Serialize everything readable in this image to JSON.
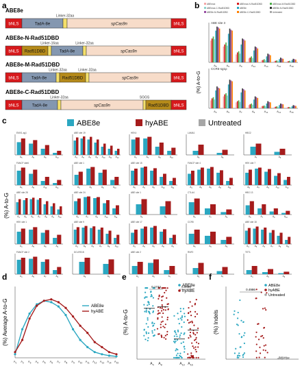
{
  "panels": {
    "a": "a",
    "b": "b",
    "c": "c",
    "d": "d",
    "e": "e",
    "f": "f"
  },
  "colors": {
    "abe8e": "#2ba7c1",
    "hyabe": "#a51c1c",
    "untreated": "#a6a6a6",
    "nls": "#d7191c",
    "tada": "#8497b0",
    "rad51": "#b58a1a",
    "cas9": "#f7dcc9",
    "linker": "#f5e06a"
  },
  "constructs": [
    {
      "name": "ABE8e",
      "segments": [
        {
          "label": "bNLS",
          "kind": "nls",
          "w": 24
        },
        {
          "label": "TadA-8e",
          "kind": "tada",
          "w": 60
        },
        {
          "label": "",
          "kind": "linker",
          "w": 6
        },
        {
          "label": "spCas9n",
          "kind": "cas9",
          "w": 152
        },
        {
          "label": "bNLS",
          "kind": "nls",
          "w": 22
        }
      ],
      "linkers": [
        "Linker-32aa"
      ]
    },
    {
      "name": "ABE8e-N-Rad51DBD",
      "segments": [
        {
          "label": "bNLS",
          "kind": "nls",
          "w": 24
        },
        {
          "label": "Rad51DBD",
          "kind": "rad51",
          "w": 38
        },
        {
          "label": "",
          "kind": "linker",
          "w": 5
        },
        {
          "label": "TadA-8e",
          "kind": "tada",
          "w": 46
        },
        {
          "label": "",
          "kind": "linker",
          "w": 5
        },
        {
          "label": "spCas9n",
          "kind": "cas9",
          "w": 124
        },
        {
          "label": "bNLS",
          "kind": "nls",
          "w": 22
        }
      ],
      "linkers": [
        "Linker-16aa",
        "Linker-32aa"
      ]
    },
    {
      "name": "ABE8e-M-Rad51DBD",
      "segments": [
        {
          "label": "bNLS",
          "kind": "nls",
          "w": 24
        },
        {
          "label": "TadA-8e",
          "kind": "tada",
          "w": 50
        },
        {
          "label": "",
          "kind": "linker",
          "w": 5
        },
        {
          "label": "Rad51DBD",
          "kind": "rad51",
          "w": 38
        },
        {
          "label": "",
          "kind": "linker",
          "w": 5
        },
        {
          "label": "spCas9n",
          "kind": "cas9",
          "w": 120
        },
        {
          "label": "bNLS",
          "kind": "nls",
          "w": 22
        }
      ],
      "linkers": [
        "Linker-32aa",
        "Linker-32aa"
      ]
    },
    {
      "name": "ABE8e-C-Rad51DBD",
      "segments": [
        {
          "label": "bNLS",
          "kind": "nls",
          "w": 24
        },
        {
          "label": "TadA-8e",
          "kind": "tada",
          "w": 52
        },
        {
          "label": "",
          "kind": "linker",
          "w": 5
        },
        {
          "label": "spCas9n",
          "kind": "cas9",
          "w": 120
        },
        {
          "label": "",
          "kind": "linker",
          "w": 4
        },
        {
          "label": "Rad51DBD",
          "kind": "rad51",
          "w": 37
        },
        {
          "label": "bNLS",
          "kind": "nls",
          "w": 22
        }
      ],
      "linkers": [
        "Linker-32aa",
        "SGGS"
      ]
    }
  ],
  "b_legend": [
    "ABEmax",
    "ABEmax-N-Rad51DBD",
    "ABEmax-M-Rad51DBD",
    "ABEmax-C-Rad51DBD",
    "ABE8e",
    "ABE8e-N-Rad51DBD",
    "ABE8e-M-Rad51DBD",
    "ABE8e-C-Rad51DBD",
    "Untreated"
  ],
  "c_legend": [
    "ABE8e",
    "hyABE",
    "Untreated"
  ],
  "ylabels": {
    "b": "(%) A-to-G",
    "c": "(%) A-to-G",
    "d": "(%) Average A-to-G",
    "e": "(%) A-to-G",
    "f": "(%) Indels"
  },
  "chart_data": [
    {
      "panel": "b",
      "type": "bar",
      "title": "ABE site 3",
      "series_names": [
        "ABEmax",
        "ABEmax-N-Rad51DBD",
        "ABEmax-M-Rad51DBD",
        "ABEmax-C-Rad51DBD",
        "ABE8e",
        "ABE8e-N-Rad51DBD",
        "ABE8e-M-Rad51DBD",
        "ABE8e-C-Rad51DBD"
      ],
      "categories": [
        "A5",
        "A6",
        "A9",
        "A12",
        "A14",
        "A16",
        "A18"
      ],
      "values": [
        [
          55,
          60,
          65,
          58,
          80,
          90,
          88,
          85
        ],
        [
          40,
          45,
          50,
          42,
          72,
          85,
          82,
          80
        ],
        [
          20,
          25,
          28,
          22,
          45,
          60,
          58,
          55
        ],
        [
          10,
          12,
          15,
          11,
          30,
          40,
          38,
          35
        ],
        [
          5,
          6,
          8,
          5,
          15,
          22,
          20,
          18
        ],
        [
          3,
          4,
          5,
          3,
          8,
          12,
          10,
          9
        ],
        [
          2,
          3,
          4,
          2,
          6,
          9,
          8,
          7
        ]
      ],
      "ylim": [
        0,
        100
      ]
    },
    {
      "panel": "b",
      "type": "bar",
      "title": "CCR5-sg1p",
      "series_names": [
        "ABEmax",
        "ABEmax-N-Rad51DBD",
        "ABEmax-M-Rad51DBD",
        "ABEmax-C-Rad51DBD",
        "ABE8e",
        "ABE8e-N-Rad51DBD",
        "ABE8e-M-Rad51DBD",
        "ABE8e-C-Rad51DBD"
      ],
      "categories": [
        "A3",
        "A5",
        "A7",
        "A9",
        "A11",
        "A13",
        "A15"
      ],
      "values": [
        [
          20,
          25,
          28,
          22,
          45,
          55,
          52,
          50
        ],
        [
          30,
          35,
          38,
          32,
          60,
          72,
          70,
          68
        ],
        [
          15,
          18,
          20,
          16,
          40,
          50,
          48,
          45
        ],
        [
          8,
          10,
          12,
          9,
          22,
          30,
          28,
          26
        ],
        [
          5,
          6,
          7,
          5,
          12,
          18,
          16,
          15
        ],
        [
          3,
          4,
          5,
          3,
          8,
          12,
          11,
          10
        ],
        [
          2,
          3,
          3,
          2,
          5,
          8,
          7,
          6
        ]
      ],
      "ylim": [
        0,
        100
      ]
    },
    {
      "panel": "c",
      "type": "bar",
      "series_names": [
        "ABE8e",
        "hyABE"
      ],
      "sites": [
        {
          "title": "EMX1-sg1",
          "cats": [
            "A5",
            "A6",
            "A8",
            "A12"
          ],
          "a": [
            62,
            55,
            30,
            10
          ],
          "h": [
            80,
            72,
            48,
            20
          ]
        },
        {
          "title": "ABE site 19",
          "cats": [
            "A4",
            "A5",
            "A6",
            "A8",
            "A10",
            "A11",
            "A12"
          ],
          "a": [
            70,
            80,
            75,
            60,
            40,
            30,
            20
          ],
          "h": [
            85,
            90,
            88,
            75,
            55,
            45,
            30
          ]
        },
        {
          "title": "HEK4",
          "cats": [
            "A4",
            "A5",
            "A8",
            "A10"
          ],
          "a": [
            75,
            80,
            40,
            20
          ],
          "h": [
            85,
            88,
            60,
            35
          ]
        },
        {
          "title": "LAMA1",
          "cats": [
            "A6",
            "A8"
          ],
          "a": [
            20,
            10
          ],
          "h": [
            50,
            25
          ]
        },
        {
          "title": "HBG2",
          "cats": [
            "A7",
            "A9"
          ],
          "a": [
            40,
            15
          ],
          "h": [
            55,
            30
          ]
        },
        {
          "title": "FANCF site6",
          "cats": [
            "A5",
            "A8",
            "A10",
            "A11"
          ],
          "a": [
            70,
            55,
            20,
            10
          ],
          "h": [
            85,
            75,
            40,
            25
          ]
        },
        {
          "title": "ABE site 1",
          "cats": [
            "A4",
            "A6",
            "A8",
            "A10"
          ],
          "a": [
            50,
            80,
            60,
            25
          ],
          "h": [
            65,
            88,
            75,
            40
          ]
        },
        {
          "title": "ABE site 15",
          "cats": [
            "A5",
            "A6",
            "A8",
            "A10",
            "A11"
          ],
          "a": [
            70,
            85,
            70,
            40,
            20
          ],
          "h": [
            80,
            90,
            82,
            55,
            35
          ]
        },
        {
          "title": "FANCF site 4",
          "cats": [
            "A4",
            "A5",
            "A6",
            "A8",
            "A11"
          ],
          "a": [
            55,
            75,
            80,
            60,
            20
          ],
          "h": [
            70,
            85,
            88,
            72,
            35
          ]
        },
        {
          "title": "HEK site 7",
          "cats": [
            "A5",
            "A7",
            "A9",
            "A10",
            "A12"
          ],
          "a": [
            60,
            80,
            65,
            45,
            25
          ],
          "h": [
            75,
            85,
            78,
            58,
            40
          ]
        },
        {
          "title": "ABE site 28",
          "cats": [
            "A4",
            "A5",
            "A6",
            "A7",
            "A8",
            "A9",
            "A10"
          ],
          "a": [
            60,
            70,
            75,
            72,
            50,
            40,
            25
          ],
          "h": [
            75,
            80,
            82,
            80,
            65,
            55,
            40
          ]
        },
        {
          "title": "ABE site 24",
          "cats": [
            "A5",
            "A7",
            "A8",
            "A10",
            "A11"
          ],
          "a": [
            65,
            85,
            80,
            55,
            30
          ],
          "h": [
            78,
            88,
            85,
            70,
            45
          ]
        },
        {
          "title": "ABE site 1",
          "cats": [
            "A5",
            "A6"
          ],
          "a": [
            50,
            40
          ],
          "h": [
            75,
            65
          ]
        },
        {
          "title": "CTLA4",
          "cats": [
            "A5",
            "A7",
            "A9"
          ],
          "a": [
            60,
            30,
            12
          ],
          "h": [
            78,
            50,
            25
          ]
        },
        {
          "title": "HBG 13",
          "cats": [
            "A5",
            "A7",
            "A9",
            "A10"
          ],
          "a": [
            45,
            30,
            15,
            8
          ],
          "h": [
            65,
            50,
            30,
            18
          ]
        },
        {
          "title": "HEK site 1",
          "cats": [
            "A4",
            "A5",
            "A8",
            "A9"
          ],
          "a": [
            60,
            70,
            55,
            30
          ],
          "h": [
            75,
            82,
            68,
            45
          ]
        },
        {
          "title": "ABE site 9",
          "cats": [
            "A4",
            "A5",
            "A6",
            "A7",
            "A8",
            "A10"
          ],
          "a": [
            70,
            80,
            78,
            70,
            50,
            30
          ],
          "h": [
            82,
            88,
            86,
            80,
            65,
            45
          ]
        },
        {
          "title": "ABE site 17",
          "cats": [
            "A4",
            "A5",
            "A6",
            "A8",
            "A9"
          ],
          "a": [
            55,
            75,
            80,
            60,
            30
          ],
          "h": [
            70,
            85,
            88,
            72,
            45
          ]
        },
        {
          "title": "CCR5",
          "cats": [
            "A5",
            "A6",
            "A9"
          ],
          "a": [
            50,
            40,
            20
          ],
          "h": [
            70,
            60,
            35
          ]
        },
        {
          "title": "ABE site 18",
          "cats": [
            "A4",
            "A5",
            "A6",
            "A7",
            "A9",
            "A11"
          ],
          "a": [
            65,
            75,
            70,
            55,
            40,
            20
          ],
          "h": [
            78,
            85,
            80,
            68,
            55,
            35
          ]
        },
        {
          "title": "FANCF site 2",
          "cats": [
            "A4",
            "A5",
            "A7",
            "A9"
          ],
          "a": [
            70,
            75,
            60,
            20
          ],
          "h": [
            80,
            85,
            72,
            35
          ]
        },
        {
          "title": "DCLRE1B",
          "cats": [
            "A5",
            "A6"
          ],
          "a": [
            60,
            50
          ],
          "h": [
            80,
            72
          ]
        },
        {
          "title": "ABE site 2",
          "cats": [
            "A4",
            "A5",
            "A7"
          ],
          "a": [
            40,
            55,
            20
          ],
          "h": [
            60,
            72,
            40
          ]
        },
        {
          "title": "RNF2",
          "cats": [
            "A4",
            "A7"
          ],
          "a": [
            30,
            15
          ],
          "h": [
            55,
            35
          ]
        },
        {
          "title": "TET1",
          "cats": [
            "A4",
            "A6",
            "A8"
          ],
          "a": [
            20,
            10,
            5
          ],
          "h": [
            40,
            25,
            12
          ]
        }
      ]
    },
    {
      "panel": "d",
      "type": "line",
      "series_names": [
        "ABE8e",
        "hyABE"
      ],
      "x": [
        "A1",
        "A2",
        "A3",
        "A4",
        "A5",
        "A6",
        "A7",
        "A8",
        "A9",
        "A10",
        "A11",
        "A12",
        "A13",
        "A14",
        "A15"
      ],
      "series": [
        {
          "name": "ABE8e",
          "values": [
            5,
            40,
            62,
            75,
            80,
            78,
            72,
            60,
            40,
            25,
            15,
            8,
            5,
            3,
            2
          ]
        },
        {
          "name": "hyABE",
          "values": [
            8,
            25,
            55,
            73,
            80,
            82,
            78,
            70,
            58,
            45,
            35,
            22,
            15,
            8,
            5
          ]
        }
      ],
      "ylim": [
        0,
        100
      ]
    },
    {
      "panel": "e",
      "type": "scatter",
      "categories": [
        "A4-A8",
        "A10-A16"
      ],
      "series_names": [
        "ABE8e",
        "hyABE"
      ],
      "pvalues": [
        "0.1744",
        "0.0066"
      ],
      "ylim": [
        0,
        100
      ]
    },
    {
      "panel": "f",
      "type": "scatter",
      "series_names": [
        "ABE8e",
        "hyABE",
        "Untreated"
      ],
      "pvalues": [
        "0.4986"
      ],
      "ylim": [
        0,
        50
      ]
    }
  ]
}
